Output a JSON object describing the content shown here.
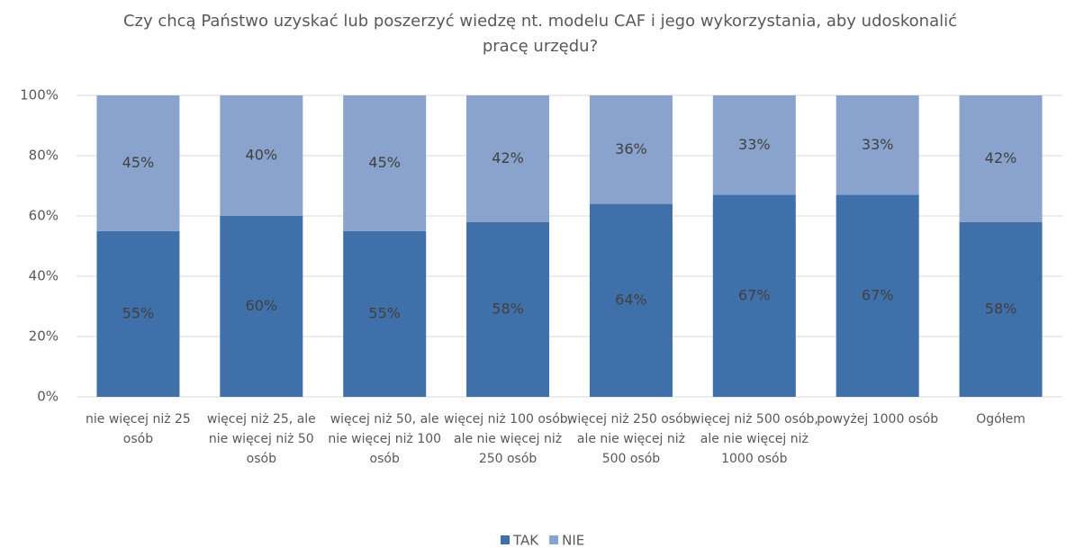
{
  "chart_data": {
    "type": "stacked_bar",
    "title": "Czy chcą Państwo uzyskać lub poszerzyć wiedzę nt. modelu CAF i jego wykorzystania, aby udoskonalić pracę urzędu?",
    "categories": [
      "nie więcej niż 25 osób",
      "więcej niż 25, ale nie więcej niż 50 osób",
      "więcej niż 50, ale nie więcej niż 100 osób",
      "więcej niż 100 osób, ale nie więcej niż 250 osób",
      "więcej niż 250 osób, ale nie więcej niż 500 osób",
      "więcej niż 500 osób, ale nie więcej niż 1000 osób",
      "powyżej 1000 osób",
      "Ogółem"
    ],
    "series": [
      {
        "name": "TAK",
        "color": "#3f70a9",
        "values": [
          55,
          60,
          55,
          58,
          64,
          67,
          67,
          58
        ],
        "value_labels": [
          "55%",
          "60%",
          "55%",
          "58%",
          "64%",
          "67%",
          "67%",
          "58%"
        ]
      },
      {
        "name": "NIE",
        "color": "#8aa3cc",
        "values": [
          45,
          40,
          45,
          42,
          36,
          33,
          33,
          42
        ],
        "value_labels": [
          "45%",
          "40%",
          "45%",
          "42%",
          "36%",
          "33%",
          "33%",
          "42%"
        ]
      }
    ],
    "ylim": [
      0,
      100
    ],
    "yticks": [
      {
        "value": 0,
        "label": "0%"
      },
      {
        "value": 20,
        "label": "20%"
      },
      {
        "value": 40,
        "label": "40%"
      },
      {
        "value": 60,
        "label": "60%"
      },
      {
        "value": 80,
        "label": "80%"
      },
      {
        "value": 100,
        "label": "100%"
      }
    ],
    "grid": true,
    "legend": "bottom"
  }
}
